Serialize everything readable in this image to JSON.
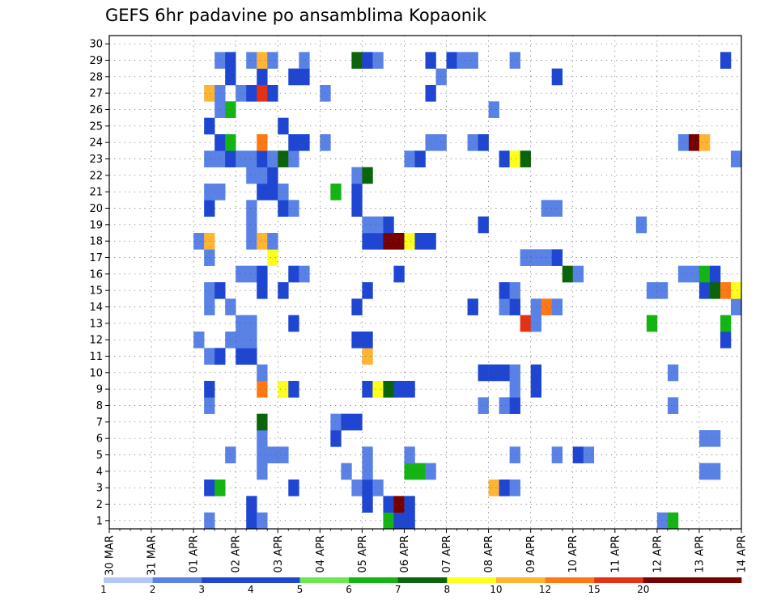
{
  "chart_data": {
    "type": "heatmap",
    "title": "GEFS 6hr padavine po ansamblima Kopaonik",
    "xlabel": "",
    "ylabel": "",
    "x_ticks": [
      "30 MAR",
      "31 MAR",
      "01 APR",
      "02 APR",
      "03 APR",
      "04 APR",
      "05 APR",
      "06 APR",
      "07 APR",
      "08 APR",
      "09 APR",
      "10 APR",
      "11 APR",
      "12 APR",
      "13 APR",
      "14 APR"
    ],
    "y_ticks": [
      1,
      2,
      3,
      4,
      5,
      6,
      7,
      8,
      9,
      10,
      11,
      12,
      13,
      14,
      15,
      16,
      17,
      18,
      19,
      20,
      21,
      22,
      23,
      24,
      25,
      26,
      27,
      28,
      29,
      30
    ],
    "members": 30,
    "steps_per_day": 4,
    "days": 15,
    "grid": true,
    "legend": {
      "placement": "bottom",
      "levels": [
        "1",
        "2",
        "3",
        "4",
        "5",
        "6",
        "7",
        "8",
        "10",
        "12",
        "15",
        "20"
      ],
      "colors": [
        "#b4c8f5",
        "#5a82e6",
        "#1e46d2",
        "#1e46d2",
        "#6ee650",
        "#14b414",
        "#0a640a",
        "#ffff1e",
        "#ffb432",
        "#ff7814",
        "#e63214",
        "#780000",
        "#780000"
      ]
    },
    "cells": [
      [
        1,
        9,
        1
      ],
      [
        1,
        13,
        2
      ],
      [
        1,
        14,
        1
      ],
      [
        1,
        26,
        5
      ],
      [
        1,
        27,
        2
      ],
      [
        1,
        28,
        2
      ],
      [
        1,
        52,
        1
      ],
      [
        1,
        53,
        5
      ],
      [
        2,
        13,
        3
      ],
      [
        2,
        24,
        3
      ],
      [
        2,
        26,
        2
      ],
      [
        2,
        27,
        11
      ],
      [
        2,
        28,
        3
      ],
      [
        3,
        9,
        3
      ],
      [
        3,
        10,
        5
      ],
      [
        3,
        17,
        2
      ],
      [
        3,
        23,
        1
      ],
      [
        3,
        24,
        3
      ],
      [
        3,
        25,
        1
      ],
      [
        3,
        36,
        8
      ],
      [
        3,
        37,
        2
      ],
      [
        3,
        38,
        1
      ],
      [
        4,
        14,
        1
      ],
      [
        4,
        22,
        1
      ],
      [
        4,
        24,
        1
      ],
      [
        4,
        28,
        5
      ],
      [
        4,
        29,
        5
      ],
      [
        4,
        30,
        1
      ],
      [
        4,
        56,
        1
      ],
      [
        4,
        57,
        1
      ],
      [
        5,
        11,
        1
      ],
      [
        5,
        14,
        1
      ],
      [
        5,
        15,
        1
      ],
      [
        5,
        16,
        1
      ],
      [
        5,
        24,
        1
      ],
      [
        5,
        28,
        1
      ],
      [
        5,
        38,
        1
      ],
      [
        5,
        42,
        1
      ],
      [
        5,
        44,
        3
      ],
      [
        5,
        45,
        1
      ],
      [
        6,
        14,
        1
      ],
      [
        6,
        21,
        2
      ],
      [
        6,
        56,
        1
      ],
      [
        6,
        57,
        1
      ],
      [
        7,
        14,
        6
      ],
      [
        7,
        21,
        1
      ],
      [
        7,
        22,
        3
      ],
      [
        7,
        23,
        2
      ],
      [
        8,
        9,
        1
      ],
      [
        8,
        35,
        1
      ],
      [
        8,
        37,
        1
      ],
      [
        8,
        38,
        2
      ],
      [
        8,
        53,
        1
      ],
      [
        9,
        9,
        3
      ],
      [
        9,
        14,
        9
      ],
      [
        9,
        16,
        7
      ],
      [
        9,
        17,
        2
      ],
      [
        9,
        24,
        2
      ],
      [
        9,
        25,
        7
      ],
      [
        9,
        26,
        6
      ],
      [
        9,
        27,
        2
      ],
      [
        9,
        28,
        3
      ],
      [
        9,
        38,
        1
      ],
      [
        9,
        40,
        3
      ],
      [
        10,
        14,
        1
      ],
      [
        10,
        35,
        2
      ],
      [
        10,
        36,
        3
      ],
      [
        10,
        37,
        3
      ],
      [
        10,
        38,
        1
      ],
      [
        10,
        40,
        3
      ],
      [
        10,
        53,
        1
      ],
      [
        11,
        9,
        1
      ],
      [
        11,
        10,
        2
      ],
      [
        11,
        12,
        2
      ],
      [
        11,
        13,
        2
      ],
      [
        11,
        24,
        8
      ],
      [
        12,
        8,
        1
      ],
      [
        12,
        11,
        1
      ],
      [
        12,
        12,
        1
      ],
      [
        12,
        13,
        1
      ],
      [
        12,
        23,
        2
      ],
      [
        12,
        24,
        3
      ],
      [
        12,
        58,
        2
      ],
      [
        13,
        12,
        1
      ],
      [
        13,
        13,
        1
      ],
      [
        13,
        17,
        2
      ],
      [
        13,
        39,
        10
      ],
      [
        13,
        40,
        1
      ],
      [
        13,
        51,
        5
      ],
      [
        13,
        58,
        5
      ],
      [
        14,
        9,
        1
      ],
      [
        14,
        11,
        1
      ],
      [
        14,
        23,
        3
      ],
      [
        14,
        34,
        2
      ],
      [
        14,
        37,
        1
      ],
      [
        14,
        38,
        2
      ],
      [
        14,
        40,
        1
      ],
      [
        14,
        41,
        9
      ],
      [
        14,
        42,
        1
      ],
      [
        14,
        59,
        1
      ],
      [
        15,
        9,
        1
      ],
      [
        15,
        10,
        2
      ],
      [
        15,
        14,
        2
      ],
      [
        15,
        16,
        3
      ],
      [
        15,
        24,
        2
      ],
      [
        15,
        37,
        2
      ],
      [
        15,
        38,
        1
      ],
      [
        15,
        51,
        1
      ],
      [
        15,
        52,
        1
      ],
      [
        15,
        56,
        3
      ],
      [
        15,
        57,
        6
      ],
      [
        15,
        58,
        9
      ],
      [
        15,
        59,
        7
      ],
      [
        16,
        12,
        1
      ],
      [
        16,
        13,
        1
      ],
      [
        16,
        14,
        2
      ],
      [
        16,
        17,
        2
      ],
      [
        16,
        18,
        1
      ],
      [
        16,
        27,
        2
      ],
      [
        16,
        43,
        6
      ],
      [
        16,
        44,
        1
      ],
      [
        16,
        54,
        1
      ],
      [
        16,
        55,
        1
      ],
      [
        16,
        56,
        5
      ],
      [
        16,
        57,
        2
      ],
      [
        17,
        9,
        1
      ],
      [
        17,
        15,
        7
      ],
      [
        17,
        39,
        1
      ],
      [
        17,
        40,
        1
      ],
      [
        17,
        41,
        1
      ],
      [
        17,
        42,
        2
      ],
      [
        18,
        8,
        1
      ],
      [
        18,
        9,
        8
      ],
      [
        18,
        13,
        1
      ],
      [
        18,
        14,
        8
      ],
      [
        18,
        15,
        1
      ],
      [
        18,
        24,
        2
      ],
      [
        18,
        25,
        2
      ],
      [
        18,
        26,
        11
      ],
      [
        18,
        27,
        11
      ],
      [
        18,
        28,
        7
      ],
      [
        18,
        29,
        3
      ],
      [
        18,
        30,
        2
      ],
      [
        19,
        13,
        1
      ],
      [
        19,
        24,
        1
      ],
      [
        19,
        25,
        1
      ],
      [
        19,
        26,
        2
      ],
      [
        19,
        35,
        3
      ],
      [
        19,
        50,
        1
      ],
      [
        20,
        9,
        3
      ],
      [
        20,
        13,
        1
      ],
      [
        20,
        16,
        3
      ],
      [
        20,
        17,
        1
      ],
      [
        20,
        23,
        3
      ],
      [
        20,
        41,
        1
      ],
      [
        20,
        42,
        1
      ],
      [
        21,
        9,
        1
      ],
      [
        21,
        10,
        1
      ],
      [
        21,
        14,
        2
      ],
      [
        21,
        15,
        2
      ],
      [
        21,
        16,
        1
      ],
      [
        21,
        21,
        5
      ],
      [
        21,
        23,
        2
      ],
      [
        22,
        13,
        1
      ],
      [
        22,
        14,
        1
      ],
      [
        22,
        15,
        3
      ],
      [
        22,
        23,
        1
      ],
      [
        22,
        24,
        6
      ],
      [
        23,
        9,
        1
      ],
      [
        23,
        10,
        1
      ],
      [
        23,
        11,
        3
      ],
      [
        23,
        12,
        1
      ],
      [
        23,
        13,
        1
      ],
      [
        23,
        14,
        3
      ],
      [
        23,
        15,
        1
      ],
      [
        23,
        16,
        6
      ],
      [
        23,
        17,
        1
      ],
      [
        23,
        28,
        1
      ],
      [
        23,
        29,
        2
      ],
      [
        23,
        37,
        2
      ],
      [
        23,
        38,
        7
      ],
      [
        23,
        39,
        6
      ],
      [
        23,
        59,
        1
      ],
      [
        24,
        10,
        2
      ],
      [
        24,
        11,
        5
      ],
      [
        24,
        14,
        9
      ],
      [
        24,
        17,
        2
      ],
      [
        24,
        18,
        2
      ],
      [
        24,
        20,
        1
      ],
      [
        24,
        30,
        1
      ],
      [
        24,
        31,
        1
      ],
      [
        24,
        34,
        1
      ],
      [
        24,
        35,
        3
      ],
      [
        24,
        54,
        1
      ],
      [
        24,
        55,
        12
      ],
      [
        24,
        56,
        8
      ],
      [
        25,
        9,
        2
      ],
      [
        25,
        16,
        2
      ],
      [
        26,
        10,
        1
      ],
      [
        26,
        11,
        5
      ],
      [
        26,
        36,
        1
      ],
      [
        27,
        9,
        8
      ],
      [
        27,
        10,
        1
      ],
      [
        27,
        12,
        1
      ],
      [
        27,
        13,
        3
      ],
      [
        27,
        14,
        10
      ],
      [
        27,
        15,
        2
      ],
      [
        27,
        20,
        1
      ],
      [
        27,
        30,
        2
      ],
      [
        28,
        11,
        3
      ],
      [
        28,
        14,
        2
      ],
      [
        28,
        17,
        2
      ],
      [
        28,
        18,
        2
      ],
      [
        28,
        31,
        1
      ],
      [
        28,
        42,
        2
      ],
      [
        29,
        10,
        1
      ],
      [
        29,
        11,
        2
      ],
      [
        29,
        13,
        1
      ],
      [
        29,
        14,
        8
      ],
      [
        29,
        15,
        1
      ],
      [
        29,
        18,
        1
      ],
      [
        29,
        23,
        6
      ],
      [
        29,
        24,
        3
      ],
      [
        29,
        25,
        1
      ],
      [
        29,
        30,
        3
      ],
      [
        29,
        32,
        3
      ],
      [
        29,
        33,
        1
      ],
      [
        29,
        34,
        1
      ],
      [
        29,
        38,
        1
      ],
      [
        29,
        58,
        2
      ]
    ]
  }
}
